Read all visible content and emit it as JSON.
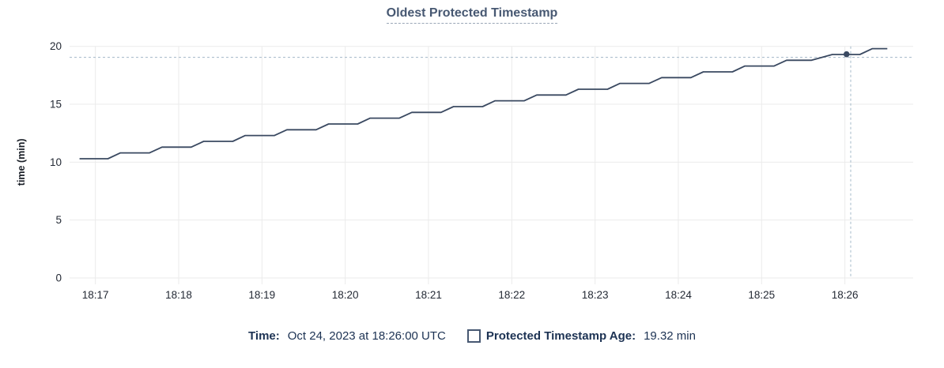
{
  "title": "Oldest Protected Timestamp",
  "footer": {
    "time_label": "Time:",
    "time_value": "Oct 24, 2023 at 18:26:00 UTC",
    "series_label": "Protected Timestamp Age:",
    "series_value": "19.32 min"
  },
  "colors": {
    "title": "#475872",
    "footer_text": "#1c3253",
    "series_line": "#3a4961",
    "gridline": "#ebebeb",
    "tick_label": "#242a35",
    "crosshair": "#a3b8c8",
    "legend_swatch_border": "#475872"
  },
  "chart_data": {
    "type": "line",
    "title": "Oldest Protected Timestamp",
    "xlabel": "",
    "ylabel": "time (min)",
    "grid": true,
    "legend_position": "bottom",
    "ylim": [
      0,
      20
    ],
    "y_ticks": [
      0,
      5,
      10,
      15,
      20
    ],
    "xlim_minutes_after_1800": [
      16.69,
      26.82
    ],
    "x_ticks": [
      {
        "label": "18:17",
        "t": 17
      },
      {
        "label": "18:18",
        "t": 18
      },
      {
        "label": "18:19",
        "t": 19
      },
      {
        "label": "18:20",
        "t": 20
      },
      {
        "label": "18:21",
        "t": 21
      },
      {
        "label": "18:22",
        "t": 22
      },
      {
        "label": "18:23",
        "t": 23
      },
      {
        "label": "18:24",
        "t": 24
      },
      {
        "label": "18:25",
        "t": 25
      },
      {
        "label": "18:26",
        "t": 26
      }
    ],
    "series": [
      {
        "name": "Protected Timestamp Age",
        "unit": "min",
        "points": [
          [
            16.81,
            10.3
          ],
          [
            17.15,
            10.3
          ],
          [
            17.3,
            10.8
          ],
          [
            17.65,
            10.8
          ],
          [
            17.8,
            11.3
          ],
          [
            18.15,
            11.3
          ],
          [
            18.3,
            11.8
          ],
          [
            18.65,
            11.8
          ],
          [
            18.8,
            12.3
          ],
          [
            19.15,
            12.3
          ],
          [
            19.3,
            12.8
          ],
          [
            19.65,
            12.8
          ],
          [
            19.8,
            13.3
          ],
          [
            20.15,
            13.3
          ],
          [
            20.3,
            13.8
          ],
          [
            20.65,
            13.8
          ],
          [
            20.8,
            14.3
          ],
          [
            21.15,
            14.3
          ],
          [
            21.3,
            14.8
          ],
          [
            21.65,
            14.8
          ],
          [
            21.8,
            15.3
          ],
          [
            22.15,
            15.3
          ],
          [
            22.3,
            15.8
          ],
          [
            22.65,
            15.8
          ],
          [
            22.8,
            16.3
          ],
          [
            23.15,
            16.3
          ],
          [
            23.3,
            16.8
          ],
          [
            23.65,
            16.8
          ],
          [
            23.8,
            17.3
          ],
          [
            24.15,
            17.3
          ],
          [
            24.3,
            17.8
          ],
          [
            24.65,
            17.8
          ],
          [
            24.8,
            18.3
          ],
          [
            25.15,
            18.3
          ],
          [
            25.3,
            18.8
          ],
          [
            25.6,
            18.8
          ],
          [
            25.85,
            19.3
          ],
          [
            26.18,
            19.3
          ],
          [
            26.33,
            19.8
          ],
          [
            26.51,
            19.8
          ]
        ]
      }
    ],
    "crosshair": {
      "t": 26.07,
      "value": 19.05
    },
    "highlight_point": {
      "t": 26.02,
      "value": 19.32,
      "time_label": "18:26:00",
      "value_label": "19.32 min"
    }
  }
}
